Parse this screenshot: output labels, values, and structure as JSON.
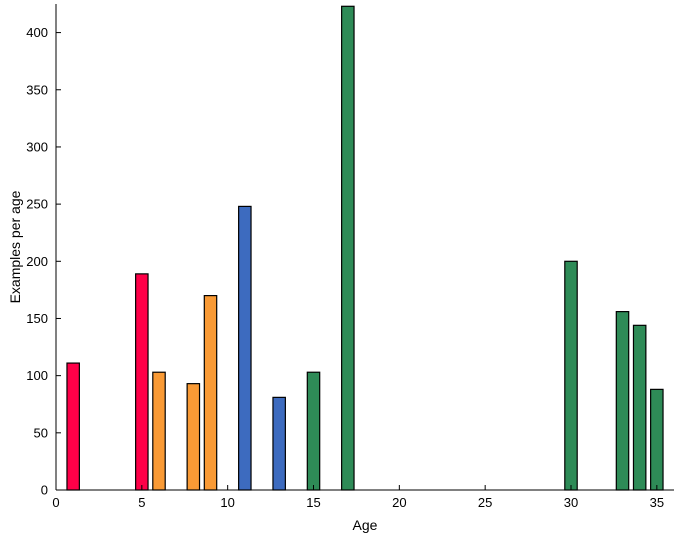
{
  "chart_data": {
    "type": "bar",
    "xlabel": "Age",
    "ylabel": "Examples per age",
    "xlim": [
      0,
      36
    ],
    "ylim": [
      0,
      425
    ],
    "x_ticks": [
      0,
      5,
      10,
      15,
      20,
      25,
      30,
      35
    ],
    "y_ticks": [
      0,
      50,
      100,
      150,
      200,
      250,
      300,
      350,
      400
    ],
    "grid": false,
    "colors": {
      "red": "#FF0048",
      "orange": "#F99A35",
      "blue": "#3D6BBF",
      "green": "#2E8B57"
    },
    "bars": [
      {
        "x": 1,
        "value": 111,
        "color": "red"
      },
      {
        "x": 2,
        "value": 0,
        "color": "red"
      },
      {
        "x": 3,
        "value": 0,
        "color": "red"
      },
      {
        "x": 4,
        "value": 0,
        "color": "red"
      },
      {
        "x": 5,
        "value": 189,
        "color": "red"
      },
      {
        "x": 6,
        "value": 103,
        "color": "orange"
      },
      {
        "x": 7,
        "value": 0,
        "color": "orange"
      },
      {
        "x": 8,
        "value": 93,
        "color": "orange"
      },
      {
        "x": 9,
        "value": 170,
        "color": "orange"
      },
      {
        "x": 10,
        "value": 0,
        "color": "blue"
      },
      {
        "x": 11,
        "value": 248,
        "color": "blue"
      },
      {
        "x": 12,
        "value": 0,
        "color": "blue"
      },
      {
        "x": 13,
        "value": 81,
        "color": "blue"
      },
      {
        "x": 14,
        "value": 0,
        "color": "green"
      },
      {
        "x": 15,
        "value": 103,
        "color": "green"
      },
      {
        "x": 16,
        "value": 0,
        "color": "green"
      },
      {
        "x": 17,
        "value": 423,
        "color": "green"
      },
      {
        "x": 18,
        "value": 0,
        "color": "green"
      },
      {
        "x": 19,
        "value": 0,
        "color": "green"
      },
      {
        "x": 20,
        "value": 0,
        "color": "green"
      },
      {
        "x": 21,
        "value": 0,
        "color": "green"
      },
      {
        "x": 22,
        "value": 0,
        "color": "green"
      },
      {
        "x": 23,
        "value": 0,
        "color": "green"
      },
      {
        "x": 24,
        "value": 0,
        "color": "green"
      },
      {
        "x": 25,
        "value": 0,
        "color": "green"
      },
      {
        "x": 26,
        "value": 0,
        "color": "green"
      },
      {
        "x": 27,
        "value": 0,
        "color": "green"
      },
      {
        "x": 28,
        "value": 0,
        "color": "green"
      },
      {
        "x": 29,
        "value": 0,
        "color": "green"
      },
      {
        "x": 30,
        "value": 200,
        "color": "green"
      },
      {
        "x": 31,
        "value": 0,
        "color": "green"
      },
      {
        "x": 32,
        "value": 0,
        "color": "green"
      },
      {
        "x": 33,
        "value": 156,
        "color": "green"
      },
      {
        "x": 34,
        "value": 144,
        "color": "green"
      },
      {
        "x": 35,
        "value": 88,
        "color": "green"
      }
    ]
  }
}
